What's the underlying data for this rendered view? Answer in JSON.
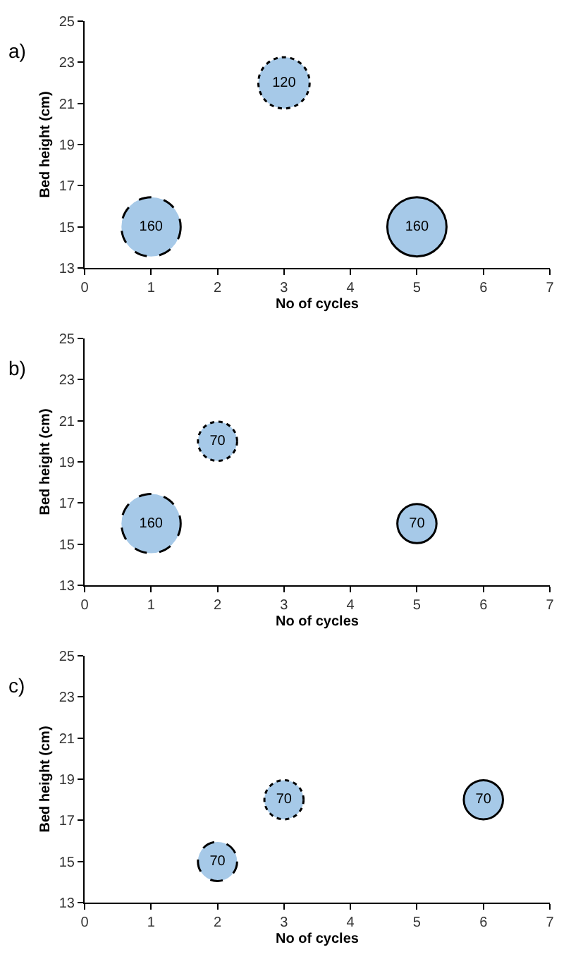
{
  "chart_data": [
    {
      "type": "bubble",
      "title": "a)",
      "xlabel": "No of cycles",
      "ylabel": "Bed height (cm)",
      "xlim": [
        0,
        7
      ],
      "xticks": [
        0,
        1,
        2,
        3,
        4,
        5,
        6,
        7
      ],
      "ylim": [
        13,
        25
      ],
      "yticks": [
        13,
        15,
        17,
        19,
        21,
        23,
        25
      ],
      "series": [
        {
          "x": [
            1
          ],
          "values": [
            15
          ],
          "sizes": [
            160
          ],
          "value_labels": [
            "160"
          ],
          "color": "#a6c9e8",
          "line_style": "dashed"
        },
        {
          "x": [
            3
          ],
          "values": [
            22
          ],
          "sizes": [
            120
          ],
          "value_labels": [
            "120"
          ],
          "color": "#a6c9e8",
          "line_style": "dotted"
        },
        {
          "x": [
            5
          ],
          "values": [
            15
          ],
          "sizes": [
            160
          ],
          "value_labels": [
            "160"
          ],
          "color": "#a6c9e8",
          "line_style": "solid"
        }
      ]
    },
    {
      "type": "bubble",
      "title": "b)",
      "xlabel": "No of cycles",
      "ylabel": "Bed height (cm)",
      "xlim": [
        0,
        7
      ],
      "xticks": [
        0,
        1,
        2,
        3,
        4,
        5,
        6,
        7
      ],
      "ylim": [
        13,
        25
      ],
      "yticks": [
        13,
        15,
        17,
        19,
        21,
        23,
        25
      ],
      "series": [
        {
          "x": [
            1
          ],
          "values": [
            16
          ],
          "sizes": [
            160
          ],
          "value_labels": [
            "160"
          ],
          "color": "#a6c9e8",
          "line_style": "dashed"
        },
        {
          "x": [
            2
          ],
          "values": [
            20
          ],
          "sizes": [
            70
          ],
          "value_labels": [
            "70"
          ],
          "color": "#a6c9e8",
          "line_style": "dotted"
        },
        {
          "x": [
            5
          ],
          "values": [
            16
          ],
          "sizes": [
            70
          ],
          "value_labels": [
            "70"
          ],
          "color": "#a6c9e8",
          "line_style": "solid"
        }
      ]
    },
    {
      "type": "bubble",
      "title": "c)",
      "xlabel": "No of cycles",
      "ylabel": "Bed height (cm)",
      "xlim": [
        0,
        7
      ],
      "xticks": [
        0,
        1,
        2,
        3,
        4,
        5,
        6,
        7
      ],
      "ylim": [
        13,
        25
      ],
      "yticks": [
        13,
        15,
        17,
        19,
        21,
        23,
        25
      ],
      "series": [
        {
          "x": [
            2
          ],
          "values": [
            15
          ],
          "sizes": [
            70
          ],
          "value_labels": [
            "70"
          ],
          "color": "#a6c9e8",
          "line_style": "dashed"
        },
        {
          "x": [
            3
          ],
          "values": [
            18
          ],
          "sizes": [
            70
          ],
          "value_labels": [
            "70"
          ],
          "color": "#a6c9e8",
          "line_style": "dotted"
        },
        {
          "x": [
            6
          ],
          "values": [
            18
          ],
          "sizes": [
            70
          ],
          "value_labels": [
            "70"
          ],
          "color": "#a6c9e8",
          "line_style": "solid"
        }
      ]
    }
  ]
}
